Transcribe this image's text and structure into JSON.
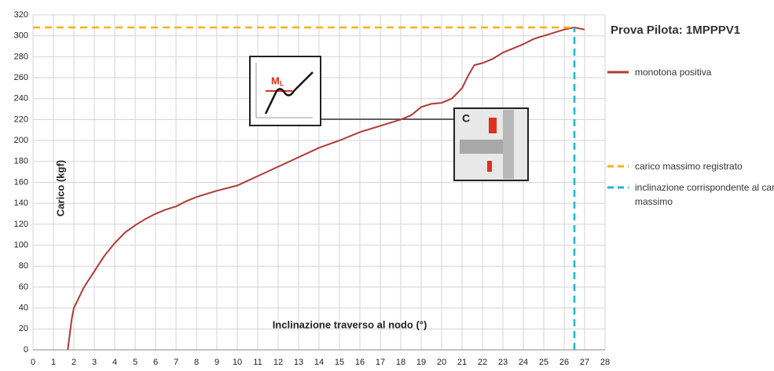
{
  "chart_data": {
    "type": "line",
    "title": "Prova Pilota: 1MPPPV1",
    "x_label": "Inclinazione traverso al nodo (°)",
    "y_label": "Carico (kgf)",
    "xlim": [
      0,
      28
    ],
    "xticks": [
      0,
      1,
      2,
      3,
      4,
      5,
      6,
      7,
      8,
      9,
      10,
      11,
      12,
      13,
      14,
      15,
      16,
      17,
      18,
      19,
      20,
      21,
      22,
      23,
      24,
      25,
      26,
      27,
      28
    ],
    "ylim": [
      0,
      320
    ],
    "yticks": [
      0,
      20,
      40,
      60,
      80,
      100,
      120,
      140,
      160,
      180,
      200,
      220,
      240,
      260,
      280,
      300,
      320
    ],
    "grid": true,
    "series": [
      {
        "name": "monotona positiva",
        "color": "#b03a36",
        "x": [
          1.7,
          1.9,
          2.0,
          2.5,
          3,
          3.5,
          4,
          4.5,
          5,
          5.5,
          6,
          6.5,
          7,
          7.5,
          8,
          9,
          10,
          11,
          12,
          13,
          14,
          15,
          16,
          17,
          18,
          18.5,
          19,
          19.5,
          20,
          20.5,
          21,
          21.3,
          21.6,
          22,
          22.5,
          23,
          23.5,
          24,
          24.5,
          25,
          25.5,
          26,
          26.5,
          27
        ],
        "values": [
          0,
          30,
          40,
          60,
          75,
          90,
          102,
          112,
          119,
          125,
          130,
          134,
          137,
          142,
          146,
          152,
          157,
          166,
          175,
          184,
          193,
          200,
          208,
          214,
          220,
          224,
          232,
          235,
          236,
          240,
          250,
          262,
          272,
          274,
          278,
          284,
          288,
          292,
          297,
          300,
          303,
          306,
          308,
          306
        ]
      }
    ],
    "reference_lines": [
      {
        "name": "carico massimo registrato",
        "color": "#f5b21a",
        "axis": "y",
        "value": 308,
        "extent": 26.5
      },
      {
        "name": "inclinazione corrispondente al carico massimo",
        "color": "#1cb6d6",
        "axis": "x",
        "value": 26.5,
        "extent": 308
      }
    ],
    "inset_symbol": "M",
    "inset_subscript": "L",
    "inset_label": "C"
  }
}
